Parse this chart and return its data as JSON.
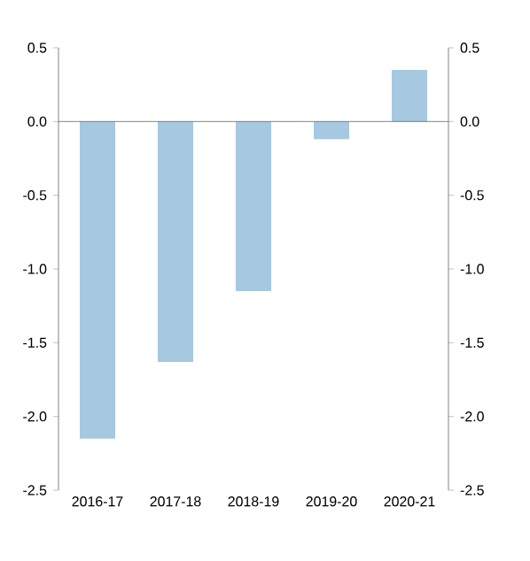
{
  "chart_data": {
    "type": "bar",
    "categories": [
      "2016-17",
      "2017-18",
      "2018-19",
      "2019-20",
      "2020-21"
    ],
    "values": [
      -2.15,
      -1.63,
      -1.15,
      -0.12,
      0.35
    ],
    "color": "#a6c8e0",
    "ylim": [
      -2.5,
      0.5
    ],
    "yticks": [
      {
        "value": -2.5,
        "label": "-2.5"
      },
      {
        "value": -2.0,
        "label": "-2.0"
      },
      {
        "value": -1.5,
        "label": "-1.5"
      },
      {
        "value": -1.0,
        "label": "-1.0"
      },
      {
        "value": -0.5,
        "label": "-0.5"
      },
      {
        "value": 0.0,
        "label": "0.0"
      },
      {
        "value": 0.5,
        "label": "0.5"
      }
    ],
    "y2lim": [
      -2.5,
      0.5
    ],
    "y2ticks": [
      {
        "value": -2.5,
        "label": "-2.5"
      },
      {
        "value": -2.0,
        "label": "-2.0"
      },
      {
        "value": -1.5,
        "label": "-1.5"
      },
      {
        "value": -1.0,
        "label": "-1.0"
      },
      {
        "value": -0.5,
        "label": "-0.5"
      },
      {
        "value": 0.0,
        "label": "0.0"
      },
      {
        "value": 0.5,
        "label": "0.5"
      }
    ]
  }
}
